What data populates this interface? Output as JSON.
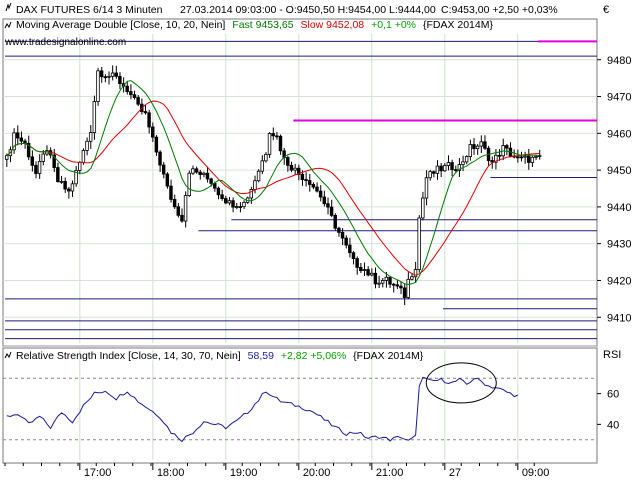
{
  "header": {
    "instrument": "DAX FUTURES 6/14 3 Minuten",
    "ohlc": "27.03.2014 09:03:00 - O:9450,50 H:9454,00 L:9444,00",
    "close": "C:9453,00 +2,50 +0,03%",
    "currency": "€"
  },
  "ma_legend": {
    "prefix": "Moving Average Double [Close, 10, 20, Nein]",
    "fast": "Fast 9453,65",
    "slow": "Slow 9452,08",
    "change": "+0,1 +0%",
    "symbol": "{FDAX 2014M}"
  },
  "watermark": "www.tradesignalonline.com",
  "rsi_legend": {
    "prefix": "Relative Strength Index [Close, 14, 30, 70, Nein]",
    "value": "58,59",
    "change": "+2,82 +5,06%",
    "symbol": "{FDAX 2014M}",
    "axis_label": "RSI"
  },
  "colors": {
    "fast_ma": "#007a00",
    "slow_ma": "#e00000",
    "rsi_line": "#1a1a9c",
    "resistance": "#e000e0",
    "support": "#1c1c7a",
    "value_blue": "#2222aa",
    "value_green": "#00a000",
    "value_red": "#dd0000"
  },
  "chart_data": [
    {
      "type": "candlestick",
      "title": "DAX FUTURES 6/14 3 Minuten",
      "ylim": [
        9403,
        9487
      ],
      "yticks": [
        9410,
        9420,
        9430,
        9440,
        9450,
        9460,
        9470,
        9480
      ],
      "ytick_labels": [
        "9410",
        "9420",
        "9430",
        "9440",
        "9450",
        "9460",
        "9470",
        "9480"
      ],
      "xlabels": [
        "17:00",
        "18:00",
        "19:00",
        "20:00",
        "21:00",
        "27",
        "09:00"
      ],
      "xlabel_pos": [
        20,
        40,
        60,
        80,
        100,
        120,
        140
      ],
      "n_bars": 147,
      "close_anchors": [
        [
          0,
          9453
        ],
        [
          2,
          9460
        ],
        [
          5,
          9457
        ],
        [
          8,
          9449
        ],
        [
          11,
          9456
        ],
        [
          14,
          9447
        ],
        [
          17,
          9444
        ],
        [
          20,
          9452
        ],
        [
          23,
          9461
        ],
        [
          25,
          9477
        ],
        [
          27,
          9476
        ],
        [
          30,
          9475
        ],
        [
          33,
          9472
        ],
        [
          36,
          9467
        ],
        [
          38,
          9465
        ],
        [
          40,
          9458
        ],
        [
          42,
          9452
        ],
        [
          44,
          9445
        ],
        [
          46,
          9440
        ],
        [
          48,
          9437
        ],
        [
          50,
          9450
        ],
        [
          53,
          9449
        ],
        [
          56,
          9447
        ],
        [
          58,
          9444
        ],
        [
          61,
          9441
        ],
        [
          63,
          9441
        ],
        [
          65,
          9441
        ],
        [
          67,
          9445
        ],
        [
          69,
          9450
        ],
        [
          71,
          9455
        ],
        [
          72,
          9461
        ],
        [
          74,
          9459
        ],
        [
          76,
          9453
        ],
        [
          78,
          9451
        ],
        [
          80,
          9449
        ],
        [
          83,
          9447
        ],
        [
          86,
          9443
        ],
        [
          89,
          9437
        ],
        [
          92,
          9431
        ],
        [
          95,
          9425
        ],
        [
          98,
          9423
        ],
        [
          101,
          9420
        ],
        [
          104,
          9420
        ],
        [
          107,
          9418
        ],
        [
          109,
          9416
        ],
        [
          110,
          9420
        ],
        [
          112,
          9424
        ],
        [
          113,
          9437
        ],
        [
          115,
          9448
        ],
        [
          118,
          9450
        ],
        [
          121,
          9451
        ],
        [
          124,
          9451
        ],
        [
          127,
          9456
        ],
        [
          130,
          9457
        ],
        [
          133,
          9452
        ],
        [
          136,
          9456
        ],
        [
          140,
          9453
        ]
      ],
      "series": [
        {
          "name": "Fast",
          "period": 10
        },
        {
          "name": "Slow",
          "period": 20
        }
      ],
      "resistance_lines": [
        {
          "y": 9463.5,
          "x_from": 79,
          "x_to": 163
        },
        {
          "y": 9485,
          "x_from": 146,
          "x_to": 163
        }
      ],
      "support_lines": [
        {
          "y": 9485,
          "x_from": 0,
          "x_to": 146
        },
        {
          "y": 9481,
          "x_from": 0,
          "x_to": 163
        },
        {
          "y": 9448,
          "x_from": 133,
          "x_to": 163
        },
        {
          "y": 9436.5,
          "x_from": 62,
          "x_to": 163
        },
        {
          "y": 9433.5,
          "x_from": 53,
          "x_to": 163
        },
        {
          "y": 9415,
          "x_from": 0,
          "x_to": 163
        },
        {
          "y": 9412.3,
          "x_from": 120,
          "x_to": 163
        },
        {
          "y": 9409,
          "x_from": 0,
          "x_to": 163
        },
        {
          "y": 9406.6,
          "x_from": 0,
          "x_to": 163
        },
        {
          "y": 9404.2,
          "x_from": 0,
          "x_to": 163
        }
      ]
    },
    {
      "type": "line",
      "title": "Relative Strength Index [Close, 14, 30, 70, Nein]",
      "ylim": [
        22,
        78
      ],
      "yticks": [
        40,
        60
      ],
      "ytick_labels": [
        "40",
        "60"
      ],
      "levels": [
        30,
        70
      ],
      "anchors": [
        [
          0,
          45
        ],
        [
          3,
          47
        ],
        [
          6,
          40
        ],
        [
          9,
          45
        ],
        [
          12,
          38
        ],
        [
          15,
          48
        ],
        [
          18,
          42
        ],
        [
          21,
          52
        ],
        [
          24,
          60
        ],
        [
          27,
          62
        ],
        [
          30,
          57
        ],
        [
          33,
          62
        ],
        [
          36,
          55
        ],
        [
          39,
          50
        ],
        [
          42,
          45
        ],
        [
          45,
          35
        ],
        [
          48,
          30
        ],
        [
          51,
          35
        ],
        [
          54,
          42
        ],
        [
          57,
          40
        ],
        [
          60,
          38
        ],
        [
          63,
          42
        ],
        [
          66,
          48
        ],
        [
          69,
          56
        ],
        [
          71,
          62
        ],
        [
          73,
          58
        ],
        [
          75,
          55
        ],
        [
          78,
          53
        ],
        [
          81,
          51
        ],
        [
          84,
          48
        ],
        [
          87,
          43
        ],
        [
          90,
          38
        ],
        [
          93,
          34
        ],
        [
          96,
          35
        ],
        [
          99,
          31
        ],
        [
          102,
          32
        ],
        [
          105,
          30
        ],
        [
          108,
          32
        ],
        [
          110,
          29
        ],
        [
          112,
          32
        ],
        [
          113,
          66
        ],
        [
          114,
          70
        ],
        [
          116,
          68
        ],
        [
          119,
          69
        ],
        [
          122,
          67
        ],
        [
          124,
          69
        ],
        [
          126,
          66
        ],
        [
          128,
          70
        ],
        [
          130,
          68
        ],
        [
          132,
          65
        ],
        [
          134,
          64
        ],
        [
          136,
          62
        ],
        [
          138,
          60
        ],
        [
          140,
          58.59
        ]
      ]
    }
  ]
}
